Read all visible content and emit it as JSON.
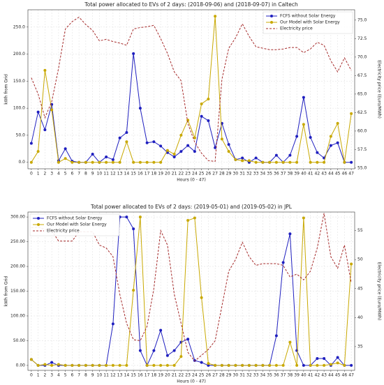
{
  "chart_data": [
    {
      "type": "line",
      "title": "Total power allocated to EVs of 2 days: (2018-09-06) and (2018-09-07) in Caltech",
      "xlabel": "Hours (0 - 47)",
      "ylabel": "kWh from Grid",
      "y2label": "Electricity price (Euro/MWh)",
      "categories": [
        "0",
        "1",
        "2",
        "3",
        "4",
        "5",
        "6",
        "7",
        "8",
        "9",
        "10",
        "11",
        "12",
        "13",
        "14",
        "15",
        "16",
        "17",
        "18",
        "19",
        "20",
        "21",
        "22",
        "23",
        "24",
        "25",
        "26",
        "27",
        "28",
        "29",
        "30",
        "31",
        "32",
        "33",
        "34",
        "35",
        "36",
        "37",
        "38",
        "39",
        "40",
        "41",
        "42",
        "43",
        "44",
        "45",
        "46",
        "47"
      ],
      "ylim": [
        -12,
        282
      ],
      "yticks": [
        {
          "value": 0,
          "label": "0.0"
        },
        {
          "value": 50,
          "label": "50.0"
        },
        {
          "value": 100,
          "label": "100.0"
        },
        {
          "value": 150,
          "label": "150.0"
        },
        {
          "value": 200,
          "label": "200.0"
        },
        {
          "value": 250,
          "label": "250.0"
        }
      ],
      "y2lim": [
        54.9,
        76.4
      ],
      "y2ticks": [
        {
          "value": 55,
          "label": "55.0"
        },
        57.5,
        {
          "value": 60,
          "label": "60.0"
        },
        62.5,
        {
          "value": 65,
          "label": "65.0"
        },
        67.5,
        {
          "value": 70,
          "label": "70.0"
        },
        72.5,
        {
          "value": 75,
          "label": "75.0"
        }
      ],
      "grid": true,
      "legend": "upper right",
      "series": [
        {
          "name": "FCFS without Solar Energy",
          "color": "#1f1fbf",
          "style": "solid-marker",
          "values": [
            35,
            93,
            60,
            107,
            3,
            25,
            2,
            0,
            0,
            15,
            0,
            10,
            5,
            45,
            55,
            201,
            100,
            36,
            38,
            30,
            18,
            10,
            20,
            31,
            20,
            85,
            77,
            27,
            72,
            33,
            5,
            8,
            0,
            8,
            0,
            0,
            13,
            0,
            13,
            48,
            120,
            46,
            18,
            8,
            31,
            36,
            0,
            0
          ]
        },
        {
          "name": "Our Model with Solar Energy",
          "color": "#c8a800",
          "style": "solid-marker",
          "values": [
            0,
            20,
            170,
            97,
            0,
            7,
            0,
            0,
            0,
            0,
            0,
            0,
            0,
            0,
            38,
            0,
            0,
            0,
            0,
            0,
            22,
            15,
            50,
            78,
            45,
            108,
            117,
            270,
            43,
            20,
            5,
            3,
            3,
            0,
            0,
            0,
            0,
            0,
            0,
            0,
            70,
            0,
            0,
            0,
            48,
            72,
            0,
            90
          ]
        },
        {
          "name": "Electricity price",
          "color": "#a52a2a",
          "style": "dashed",
          "axis": "y2",
          "values": [
            67.2,
            65,
            61.8,
            64,
            68.5,
            73.8,
            74.8,
            75.4,
            74.4,
            73.6,
            72.2,
            72.4,
            72.1,
            71.9,
            71.6,
            73.8,
            74,
            74.1,
            74.3,
            72.5,
            70.5,
            68,
            66.8,
            61,
            58.5,
            57,
            56,
            55.9,
            67,
            71.2,
            72.6,
            74.5,
            72.8,
            71.4,
            71.2,
            71,
            71,
            71.1,
            71.3,
            71.3,
            70.6,
            71.1,
            72,
            71.6,
            69.5,
            68,
            69.9,
            68.2
          ]
        }
      ]
    },
    {
      "type": "line",
      "title": "Total power allocated to EVs of 2 days: (2019-05-01) and (2019-05-02) in JPL",
      "xlabel": "Hours (0 - 47)",
      "ylabel": "kWh from Grid",
      "y2label": "Electricity price (Euro/MWh)",
      "categories": [
        "0",
        "1",
        "2",
        "3",
        "4",
        "5",
        "6",
        "7",
        "8",
        "9",
        "10",
        "11",
        "12",
        "13",
        "14",
        "15",
        "16",
        "17",
        "18",
        "19",
        "20",
        "21",
        "22",
        "23",
        "24",
        "25",
        "26",
        "27",
        "28",
        "29",
        "30",
        "31",
        "32",
        "33",
        "34",
        "35",
        "36",
        "37",
        "38",
        "39",
        "40",
        "41",
        "42",
        "43",
        "44",
        "45",
        "46",
        "47"
      ],
      "ylim": [
        -10,
        310
      ],
      "yticks": [
        {
          "value": 0,
          "label": "0.00"
        },
        {
          "value": 50,
          "label": "50.00"
        },
        {
          "value": 100,
          "label": "100.00"
        },
        {
          "value": 150,
          "label": "150.00"
        },
        {
          "value": 200,
          "label": "200.00"
        },
        {
          "value": 250,
          "label": "250.00"
        },
        {
          "value": 300,
          "label": "300.00"
        }
      ],
      "y2lim": [
        30.9,
        58.2
      ],
      "y2ticks": [
        35,
        40,
        45,
        50,
        55
      ],
      "grid": true,
      "legend": "upper left",
      "series": [
        {
          "name": "FCFS without Solar Energy",
          "color": "#1f1fbf",
          "style": "solid-marker",
          "values": [
            12,
            0,
            0,
            6,
            0,
            0,
            0,
            0,
            0,
            0,
            0,
            0,
            84,
            300,
            300,
            276,
            30,
            0,
            30,
            71,
            20,
            30,
            47,
            53,
            10,
            6,
            0,
            0,
            0,
            0,
            0,
            0,
            0,
            0,
            0,
            0,
            60,
            208,
            266,
            30,
            0,
            0,
            14,
            14,
            0,
            16,
            0,
            0
          ]
        },
        {
          "name": "Our Model with Solar Energy",
          "color": "#c8a800",
          "style": "solid-marker",
          "values": [
            12,
            0,
            2,
            0,
            2,
            0,
            0,
            0,
            0,
            0,
            0,
            0,
            0,
            0,
            0,
            152,
            300,
            0,
            0,
            0,
            0,
            0,
            18,
            293,
            298,
            137,
            4,
            0,
            0,
            0,
            0,
            0,
            0,
            0,
            0,
            0,
            0,
            0,
            47,
            0,
            298,
            0,
            0,
            0,
            2,
            5,
            0,
            205
          ]
        },
        {
          "name": "Electricity price",
          "color": "#a52a2a",
          "style": "dashed",
          "axis": "y2",
          "values": [
            55.5,
            55.6,
            55.2,
            55,
            53.2,
            53.2,
            53.2,
            54.8,
            54.8,
            54.8,
            52.5,
            52,
            50.5,
            44,
            39,
            36.2,
            36,
            38.5,
            45,
            55,
            52.5,
            44,
            39,
            34,
            32.5,
            33.5,
            34.5,
            36,
            42,
            48,
            50,
            53,
            50.5,
            49,
            49.3,
            49.3,
            49.3,
            49,
            47,
            47.5,
            46.5,
            48,
            52,
            58,
            50.5,
            48.5,
            52.5,
            46
          ]
        }
      ]
    }
  ]
}
